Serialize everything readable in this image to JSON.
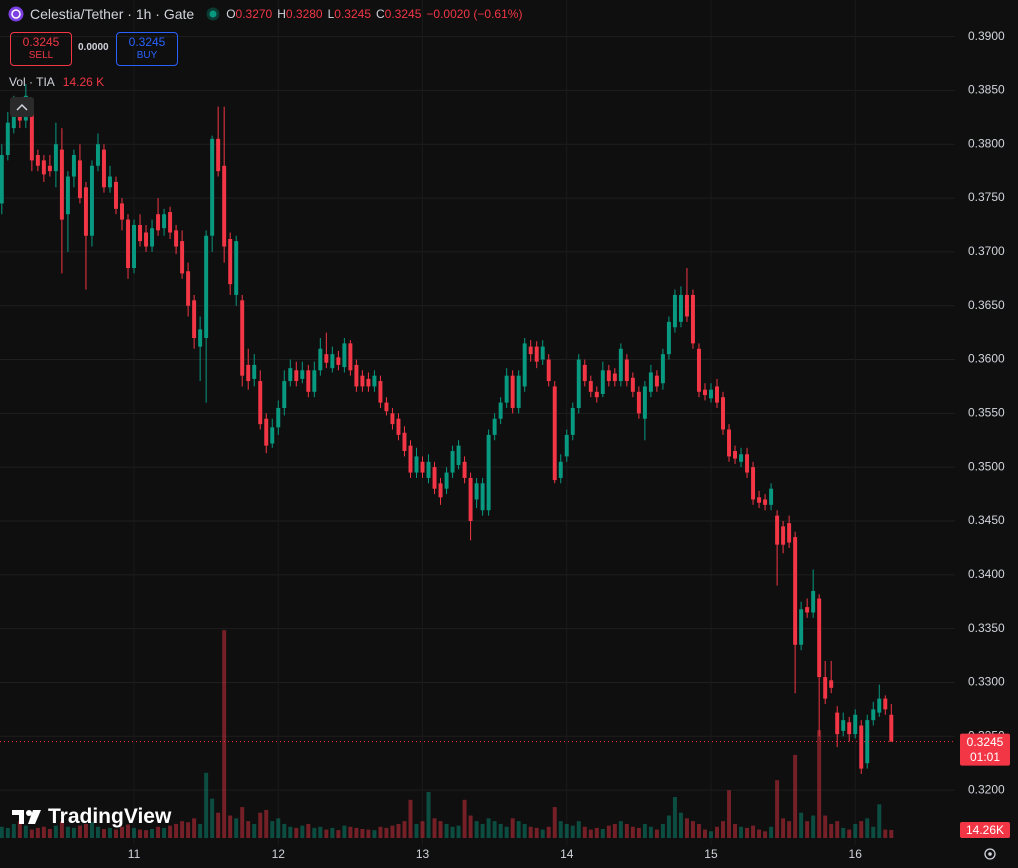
{
  "header": {
    "symbol_title": "Celestia/Tether · 1h · Gate",
    "ohlc": [
      {
        "label": "O",
        "value": "0.3270"
      },
      {
        "label": "H",
        "value": "0.3280"
      },
      {
        "label": "L",
        "value": "0.3245"
      },
      {
        "label": "C",
        "value": "0.3245"
      }
    ],
    "change": "−0.0020 (−0.61%)"
  },
  "trade": {
    "sell_price": "0.3245",
    "sell_label": "SELL",
    "spread": "0.0000",
    "buy_price": "0.3245",
    "buy_label": "BUY"
  },
  "volume_legend": {
    "label": "Vol · TIA",
    "value": "14.26 K"
  },
  "branding": "TradingView",
  "chart_data": {
    "type": "candlestick",
    "grid": true,
    "up_color": "#089981",
    "down_color": "#f23645",
    "open": [
      0.3745,
      0.379,
      0.3815,
      0.3835,
      0.3822,
      0.383,
      0.379,
      0.3785,
      0.378,
      0.3775,
      0.3795,
      0.3735,
      0.377,
      0.3785,
      0.376,
      0.3715,
      0.378,
      0.3795,
      0.376,
      0.3765,
      0.3745,
      0.373,
      0.3685,
      0.3725,
      0.3718,
      0.3705,
      0.3735,
      0.3722,
      0.3737,
      0.372,
      0.371,
      0.3682,
      0.3655,
      0.3612,
      0.362,
      0.3715,
      0.3805,
      0.378,
      0.3712,
      0.366,
      0.3655,
      0.3595,
      0.3582,
      0.358,
      0.3545,
      0.3522,
      0.3537,
      0.3555,
      0.358,
      0.359,
      0.3582,
      0.359,
      0.357,
      0.359,
      0.3605,
      0.3592,
      0.3602,
      0.3593,
      0.3615,
      0.3595,
      0.3585,
      0.3582,
      0.3575,
      0.358,
      0.356,
      0.355,
      0.3545,
      0.3532,
      0.352,
      0.3495,
      0.3505,
      0.349,
      0.35,
      0.3485,
      0.348,
      0.3495,
      0.3502,
      0.3505,
      0.349,
      0.347,
      0.346,
      0.346,
      0.353,
      0.3545,
      0.356,
      0.3585,
      0.3555,
      0.3575,
      0.3612,
      0.3612,
      0.36,
      0.36,
      0.3575,
      0.349,
      0.351,
      0.353,
      0.3555,
      0.3595,
      0.358,
      0.357,
      0.3568,
      0.359,
      0.3587,
      0.358,
      0.36,
      0.3583,
      0.357,
      0.3545,
      0.357,
      0.3585,
      0.3578,
      0.3605,
      0.363,
      0.3635,
      0.366,
      0.366,
      0.361,
      0.3572,
      0.3564,
      0.3575,
      0.3565,
      0.3535,
      0.3515,
      0.3505,
      0.3512,
      0.35,
      0.3472,
      0.347,
      0.3465,
      0.3455,
      0.3445,
      0.3448,
      0.3435,
      0.3335,
      0.337,
      0.3365,
      0.3378,
      0.3305,
      0.3302,
      0.3272,
      0.3255,
      0.3263,
      0.3252,
      0.326,
      0.3225,
      0.3265,
      0.3272,
      0.3285,
      0.327
    ],
    "high": [
      0.38,
      0.383,
      0.3845,
      0.384,
      0.3856,
      0.3835,
      0.3795,
      0.379,
      0.379,
      0.382,
      0.3815,
      0.3775,
      0.3795,
      0.38,
      0.3765,
      0.3785,
      0.381,
      0.38,
      0.378,
      0.377,
      0.375,
      0.3735,
      0.373,
      0.3735,
      0.3725,
      0.373,
      0.375,
      0.374,
      0.3742,
      0.3725,
      0.372,
      0.369,
      0.366,
      0.364,
      0.372,
      0.3808,
      0.3835,
      0.3835,
      0.3718,
      0.3715,
      0.366,
      0.361,
      0.3605,
      0.359,
      0.355,
      0.3545,
      0.3562,
      0.359,
      0.36,
      0.3598,
      0.3598,
      0.3595,
      0.3598,
      0.362,
      0.3625,
      0.3612,
      0.3608,
      0.362,
      0.3618,
      0.36,
      0.359,
      0.3588,
      0.359,
      0.3585,
      0.3565,
      0.3555,
      0.355,
      0.3538,
      0.3525,
      0.3518,
      0.351,
      0.3512,
      0.3505,
      0.349,
      0.35,
      0.352,
      0.3525,
      0.351,
      0.3495,
      0.349,
      0.349,
      0.3535,
      0.355,
      0.3565,
      0.3592,
      0.359,
      0.359,
      0.362,
      0.3618,
      0.3617,
      0.3618,
      0.3605,
      0.358,
      0.3512,
      0.3535,
      0.356,
      0.3605,
      0.36,
      0.3585,
      0.3575,
      0.3598,
      0.3595,
      0.3592,
      0.3615,
      0.3605,
      0.3588,
      0.3575,
      0.358,
      0.3595,
      0.359,
      0.361,
      0.364,
      0.3665,
      0.3668,
      0.3685,
      0.3665,
      0.3615,
      0.3578,
      0.3578,
      0.3582,
      0.357,
      0.354,
      0.352,
      0.3518,
      0.3518,
      0.3505,
      0.3478,
      0.3475,
      0.3485,
      0.346,
      0.345,
      0.3455,
      0.344,
      0.3375,
      0.3378,
      0.3405,
      0.3382,
      0.332,
      0.332,
      0.3278,
      0.3272,
      0.3268,
      0.3275,
      0.3265,
      0.327,
      0.3282,
      0.3298,
      0.3288,
      0.328
    ],
    "low": [
      0.3735,
      0.3785,
      0.381,
      0.3815,
      0.3815,
      0.3775,
      0.3775,
      0.3765,
      0.377,
      0.376,
      0.368,
      0.37,
      0.376,
      0.3745,
      0.3665,
      0.3705,
      0.3775,
      0.3755,
      0.3755,
      0.3735,
      0.372,
      0.3675,
      0.368,
      0.3705,
      0.37,
      0.37,
      0.3715,
      0.3715,
      0.3712,
      0.3698,
      0.3675,
      0.364,
      0.361,
      0.358,
      0.356,
      0.37,
      0.377,
      0.369,
      0.366,
      0.365,
      0.3575,
      0.3572,
      0.3575,
      0.3535,
      0.3513,
      0.3518,
      0.353,
      0.3548,
      0.3575,
      0.3575,
      0.3578,
      0.3565,
      0.3565,
      0.3585,
      0.3592,
      0.3588,
      0.359,
      0.3588,
      0.3585,
      0.357,
      0.357,
      0.357,
      0.357,
      0.3555,
      0.3548,
      0.3535,
      0.3525,
      0.351,
      0.349,
      0.349,
      0.349,
      0.3485,
      0.3475,
      0.3465,
      0.3475,
      0.349,
      0.3498,
      0.3485,
      0.3432,
      0.3462,
      0.3455,
      0.3455,
      0.3525,
      0.354,
      0.3555,
      0.355,
      0.355,
      0.357,
      0.3598,
      0.3592,
      0.3595,
      0.3575,
      0.3485,
      0.3485,
      0.3505,
      0.3525,
      0.355,
      0.3575,
      0.3565,
      0.356,
      0.3565,
      0.3575,
      0.3575,
      0.3575,
      0.3575,
      0.3565,
      0.3545,
      0.3525,
      0.3565,
      0.357,
      0.3572,
      0.36,
      0.3625,
      0.363,
      0.3635,
      0.361,
      0.3565,
      0.3562,
      0.356,
      0.3555,
      0.353,
      0.3505,
      0.3503,
      0.35,
      0.349,
      0.3465,
      0.3462,
      0.346,
      0.346,
      0.339,
      0.342,
      0.3425,
      0.329,
      0.333,
      0.336,
      0.336,
      0.325,
      0.328,
      0.329,
      0.324,
      0.325,
      0.3245,
      0.3248,
      0.3215,
      0.322,
      0.326,
      0.3268,
      0.327,
      0.3245
    ],
    "close": [
      0.379,
      0.382,
      0.383,
      0.3822,
      0.3845,
      0.3785,
      0.378,
      0.3772,
      0.3775,
      0.38,
      0.373,
      0.377,
      0.379,
      0.375,
      0.3715,
      0.378,
      0.38,
      0.376,
      0.377,
      0.374,
      0.373,
      0.3685,
      0.3725,
      0.371,
      0.3705,
      0.3722,
      0.372,
      0.3735,
      0.3718,
      0.3705,
      0.368,
      0.365,
      0.362,
      0.3628,
      0.3715,
      0.3805,
      0.3775,
      0.3705,
      0.367,
      0.371,
      0.3585,
      0.358,
      0.3595,
      0.354,
      0.352,
      0.3537,
      0.3555,
      0.358,
      0.3592,
      0.358,
      0.359,
      0.357,
      0.359,
      0.361,
      0.3597,
      0.3605,
      0.3595,
      0.3615,
      0.359,
      0.3575,
      0.3575,
      0.3575,
      0.3585,
      0.356,
      0.3552,
      0.354,
      0.353,
      0.3515,
      0.3495,
      0.351,
      0.3495,
      0.3505,
      0.348,
      0.3472,
      0.3495,
      0.3515,
      0.352,
      0.349,
      0.345,
      0.3485,
      0.3485,
      0.353,
      0.3545,
      0.356,
      0.3585,
      0.3555,
      0.3585,
      0.3615,
      0.3605,
      0.3598,
      0.3612,
      0.358,
      0.3488,
      0.3505,
      0.353,
      0.3555,
      0.36,
      0.358,
      0.357,
      0.3565,
      0.359,
      0.358,
      0.358,
      0.361,
      0.358,
      0.357,
      0.355,
      0.3575,
      0.3588,
      0.3575,
      0.3605,
      0.3635,
      0.366,
      0.366,
      0.364,
      0.3615,
      0.357,
      0.3567,
      0.3572,
      0.356,
      0.3535,
      0.351,
      0.3508,
      0.3512,
      0.3495,
      0.347,
      0.3467,
      0.3465,
      0.348,
      0.3428,
      0.3428,
      0.343,
      0.3335,
      0.3368,
      0.3365,
      0.3385,
      0.3305,
      0.3285,
      0.3295,
      0.3252,
      0.3265,
      0.3252,
      0.327,
      0.322,
      0.3265,
      0.3275,
      0.3285,
      0.3275,
      0.3245
    ],
    "volume": [
      20,
      18,
      25,
      30,
      22,
      15,
      18,
      20,
      16,
      22,
      30,
      20,
      18,
      22,
      25,
      28,
      20,
      16,
      18,
      15,
      20,
      24,
      18,
      15,
      14,
      16,
      20,
      18,
      22,
      25,
      30,
      28,
      35,
      25,
      116,
      70,
      45,
      370,
      40,
      35,
      55,
      30,
      25,
      45,
      50,
      30,
      35,
      25,
      20,
      18,
      22,
      25,
      18,
      20,
      15,
      18,
      14,
      22,
      20,
      18,
      16,
      15,
      14,
      20,
      18,
      22,
      25,
      30,
      68,
      25,
      30,
      82,
      35,
      30,
      25,
      20,
      22,
      68,
      40,
      30,
      25,
      35,
      30,
      25,
      20,
      35,
      30,
      25,
      20,
      18,
      15,
      20,
      55,
      30,
      25,
      22,
      30,
      20,
      15,
      18,
      16,
      22,
      25,
      30,
      25,
      20,
      18,
      25,
      20,
      15,
      25,
      40,
      73,
      45,
      35,
      30,
      25,
      15,
      12,
      20,
      30,
      85,
      25,
      20,
      18,
      22,
      15,
      12,
      20,
      103,
      35,
      30,
      148,
      45,
      30,
      40,
      192,
      40,
      25,
      30,
      18,
      15,
      25,
      30,
      35,
      20,
      60,
      15,
      14.26
    ],
    "xlim": [
      -0.3,
      158.6
    ],
    "xticks": [
      {
        "value": 22,
        "label": "11"
      },
      {
        "value": 46,
        "label": "12"
      },
      {
        "value": 70,
        "label": "13"
      },
      {
        "value": 94,
        "label": "14"
      },
      {
        "value": 118,
        "label": "15"
      },
      {
        "value": 142,
        "label": "16"
      }
    ],
    "ylim": [
      0.3149,
      0.3934
    ],
    "yticks": [
      {
        "value": 0.32,
        "label": "0.3200"
      },
      {
        "value": 0.325,
        "label": "0.3250"
      },
      {
        "value": 0.33,
        "label": "0.3300"
      },
      {
        "value": 0.335,
        "label": "0.3350"
      },
      {
        "value": 0.34,
        "label": "0.3400"
      },
      {
        "value": 0.345,
        "label": "0.3450"
      },
      {
        "value": 0.35,
        "label": "0.3500"
      },
      {
        "value": 0.355,
        "label": "0.3550"
      },
      {
        "value": 0.36,
        "label": "0.3600"
      },
      {
        "value": 0.365,
        "label": "0.3650"
      },
      {
        "value": 0.37,
        "label": "0.3700"
      },
      {
        "value": 0.375,
        "label": "0.3750"
      },
      {
        "value": 0.38,
        "label": "0.3800"
      },
      {
        "value": 0.385,
        "label": "0.3850"
      },
      {
        "value": 0.39,
        "label": "0.3900"
      }
    ],
    "volume_lim": [
      0,
      470
    ],
    "last_price": {
      "value": 0.3245,
      "label": "0.3245"
    },
    "countdown": "01:01",
    "volume_tag": {
      "value": 14.26,
      "label": "14.26K"
    }
  }
}
